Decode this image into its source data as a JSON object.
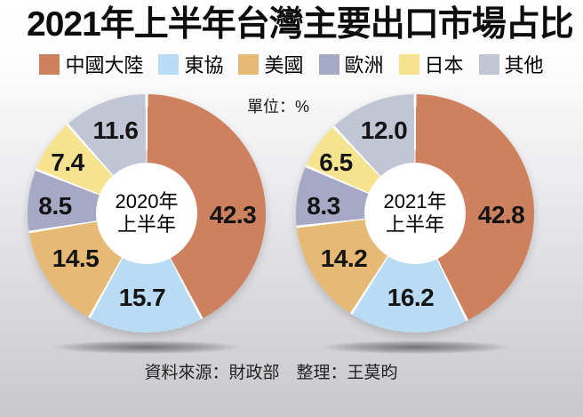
{
  "title": "2021年上半年台灣主要出口市場占比",
  "unit_label": "單位：%",
  "source_note": "資料來源：財政部　整理：王莫昀",
  "legend": {
    "items": [
      {
        "label": "中國大陸",
        "color": "#ce815f"
      },
      {
        "label": "東協",
        "color": "#b9dcf4"
      },
      {
        "label": "美國",
        "color": "#e6b975"
      },
      {
        "label": "歐洲",
        "color": "#a7a8c5"
      },
      {
        "label": "日本",
        "color": "#f5e390"
      },
      {
        "label": "其他",
        "color": "#c2c6d4"
      }
    ]
  },
  "chart_data": {
    "type": "pie",
    "subtype": "double-donut",
    "unit": "%",
    "start_angle_deg": 0,
    "direction": "clockwise",
    "categories": [
      "中國大陸",
      "東協",
      "美國",
      "歐洲",
      "日本",
      "其他"
    ],
    "colors": [
      "#ce815f",
      "#b9dcf4",
      "#e6b975",
      "#a7a8c5",
      "#f5e390",
      "#c2c6d4"
    ],
    "series": [
      {
        "name": "2020年上半年",
        "center_label_lines": [
          "2020年",
          "上半年"
        ],
        "values": [
          42.3,
          15.7,
          14.5,
          8.5,
          7.4,
          11.6
        ]
      },
      {
        "name": "2021年上半年",
        "center_label_lines": [
          "2021年",
          "上半年"
        ],
        "values": [
          42.8,
          16.2,
          14.2,
          8.3,
          6.5,
          12.0
        ]
      }
    ]
  }
}
